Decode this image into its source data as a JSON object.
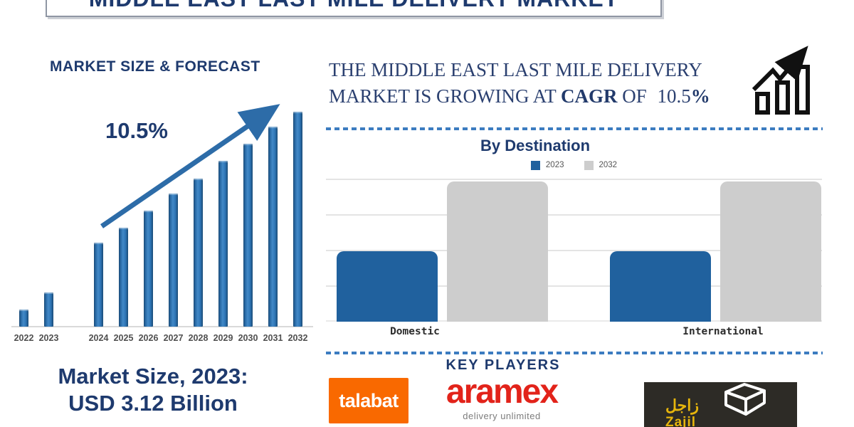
{
  "banner": {
    "title": "MIDDLE EAST LAST MILE DELIVERY MARKET"
  },
  "market_size_panel": {
    "heading": "MARKET SIZE & FORECAST",
    "growth_label": "10.5%",
    "summary_line1": "Market Size, 2023:",
    "summary_line2": "USD 3.12 Billion"
  },
  "growth_statement": {
    "line1": "THE MIDDLE EAST LAST MILE DELIVERY",
    "line2_pre": "MARKET IS GROWING AT ",
    "line2_cagr": "CAGR",
    "line2_mid": " OF ",
    "line2_value": "10.5",
    "line2_pct": "%"
  },
  "destination_panel": {
    "title": "By Destination",
    "legend": [
      {
        "label": "2023",
        "color": "#20619e"
      },
      {
        "label": "2032",
        "color": "#cdcdcd"
      }
    ]
  },
  "key_players": {
    "heading": "KEY PLAYERS",
    "players": [
      {
        "name": "talabat"
      },
      {
        "name": "aramex",
        "tagline": "delivery unlimited"
      },
      {
        "name": "Zajil",
        "arabic": "زاجل"
      }
    ]
  },
  "chart_data": [
    {
      "type": "bar",
      "title": "MARKET SIZE & FORECAST",
      "categories": [
        "2022",
        "2023",
        "2024",
        "2025",
        "2026",
        "2027",
        "2028",
        "2029",
        "2030",
        "2031",
        "2032"
      ],
      "values": [
        8,
        16,
        39,
        46,
        54,
        62,
        69,
        77,
        85,
        93,
        100
      ],
      "units": "relative bar height, % of 2032 bar (y-axis unlabeled)",
      "xlabel": "",
      "ylabel": "",
      "gap_after": "2023",
      "annotations": [
        "10.5% CAGR trend arrow rising left-to-right"
      ],
      "bar_color": "#2e75b6",
      "grid": false
    },
    {
      "type": "bar",
      "title": "By Destination",
      "categories": [
        "Domestic",
        "International"
      ],
      "series": [
        {
          "name": "2023",
          "values": [
            50,
            50
          ],
          "color": "#20619e"
        },
        {
          "name": "2032",
          "values": [
            100,
            100
          ],
          "color": "#cdcdcd"
        }
      ],
      "units": "relative bar height, % of 2032 bar (y-axis unlabeled)",
      "legend_position": "top",
      "grid": true
    }
  ],
  "colors": {
    "navy": "#1e3a6e",
    "dash_blue": "#3c7cc0",
    "bar_blue": "#2e75b6",
    "bar_gray": "#cdcdcd",
    "talabat_orange": "#f96900",
    "aramex_red": "#e2231a",
    "zajil_bg": "#2d2b26",
    "zajil_yellow": "#e6b50c"
  }
}
